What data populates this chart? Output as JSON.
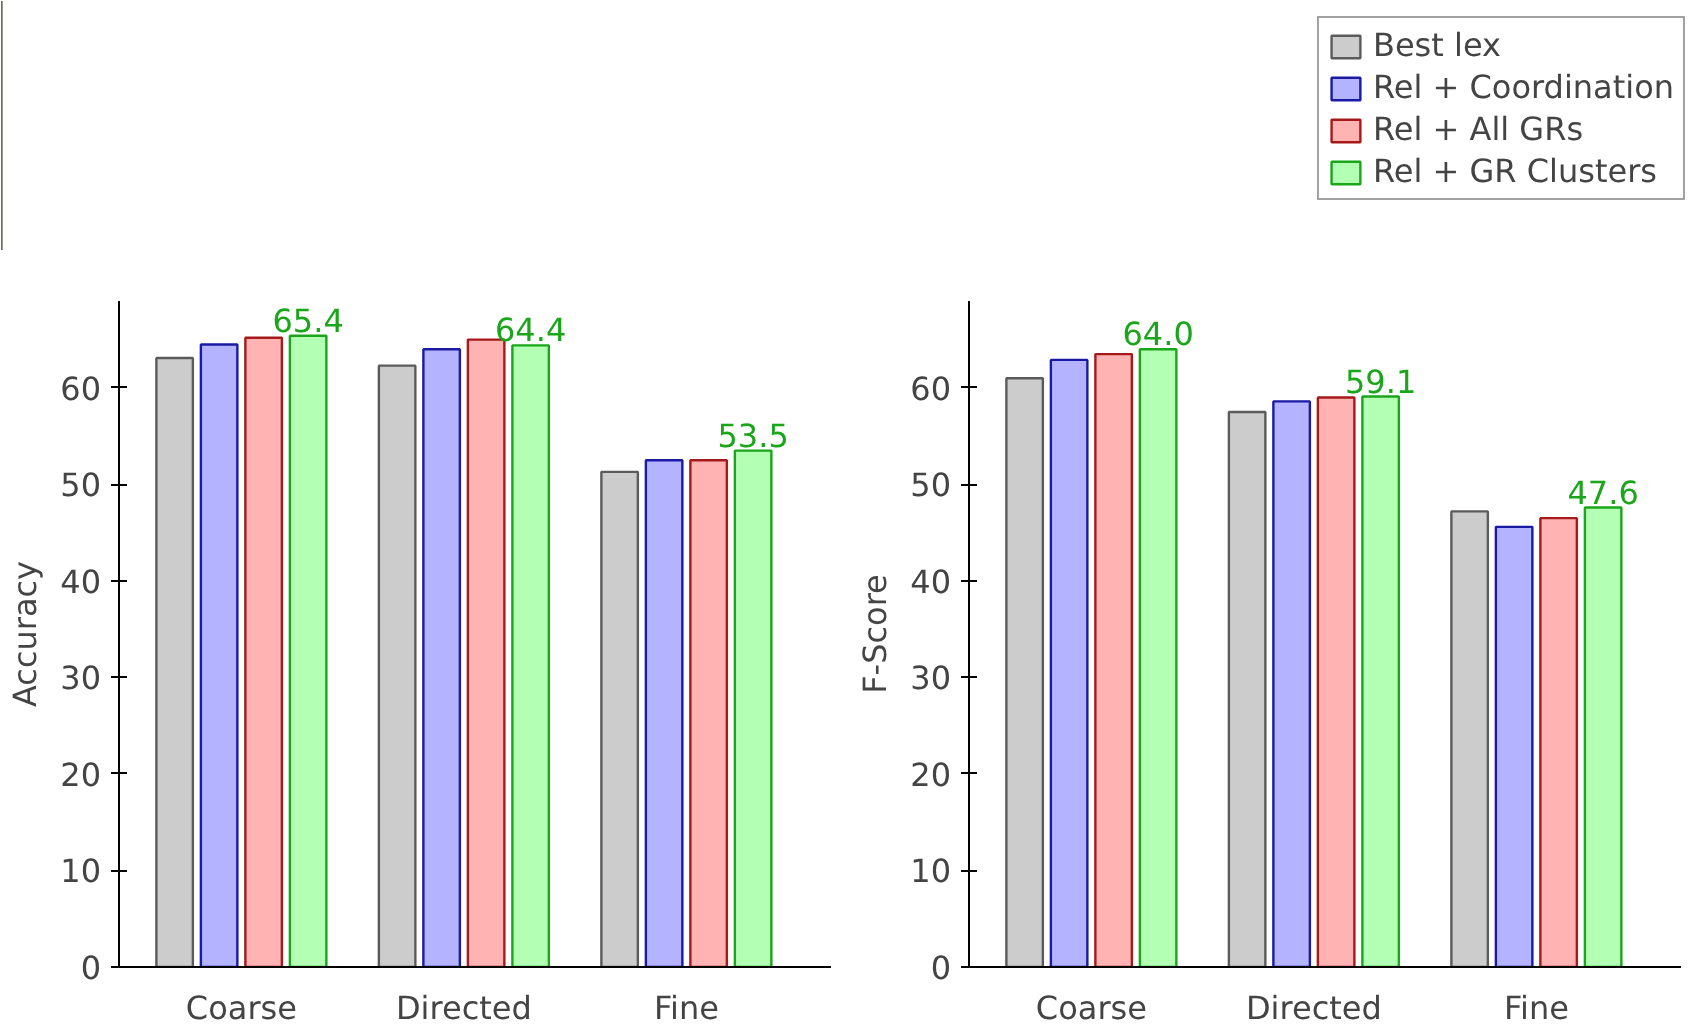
{
  "chart_data": [
    {
      "type": "bar",
      "ylabel": "Accuracy",
      "categories": [
        "Coarse",
        "Directed",
        "Fine"
      ],
      "ylim": [
        0,
        69
      ],
      "yticks": [
        0,
        10,
        20,
        30,
        40,
        50,
        60
      ],
      "grid": false,
      "series": [
        {
          "color": "#cccccc",
          "values": [
            63.1,
            62.3,
            51.3
          ]
        },
        {
          "color": "#b3b3ff",
          "values": [
            64.5,
            64.0,
            52.5
          ]
        },
        {
          "color": "#ffb3b3",
          "values": [
            65.2,
            65.0,
            52.5
          ]
        },
        {
          "color": "#b3ffb3",
          "values": [
            65.4,
            64.4,
            53.5
          ],
          "value_labels": [
            "65.4",
            "64.4",
            "53.5"
          ]
        }
      ]
    },
    {
      "type": "bar",
      "ylabel": "F-Score",
      "categories": [
        "Coarse",
        "Directed",
        "Fine"
      ],
      "ylim": [
        0,
        69
      ],
      "yticks": [
        0,
        10,
        20,
        30,
        40,
        50,
        60
      ],
      "grid": false,
      "legend": "top right",
      "series": [
        {
          "name": "Best lex",
          "color": "#cccccc",
          "values": [
            61.0,
            57.5,
            47.2
          ]
        },
        {
          "name": "Rel + Coordination",
          "color": "#b3b3ff",
          "values": [
            62.9,
            58.6,
            45.6
          ]
        },
        {
          "name": "Rel + All GRs",
          "color": "#ffb3b3",
          "values": [
            63.5,
            59.0,
            46.5
          ]
        },
        {
          "name": "Rel + GR Clusters",
          "color": "#b3ffb3",
          "values": [
            64.0,
            59.1,
            47.6
          ],
          "value_labels": [
            "64.0",
            "59.1",
            "47.6"
          ]
        }
      ]
    }
  ]
}
